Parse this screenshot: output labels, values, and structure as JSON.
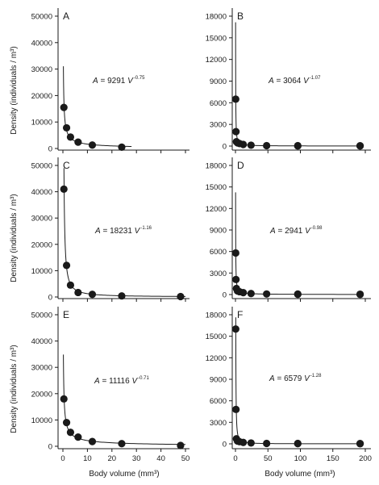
{
  "figure": {
    "ylabel": "Density (individuals / m³)",
    "xlabel": "Body volume (mm³)"
  },
  "chart_data": [
    {
      "type": "scatter",
      "panel": "A",
      "equation": {
        "lhs": "A",
        "coef": "9291",
        "var": "V",
        "exp": "-0.75",
        "a": 9291,
        "b": -0.75
      },
      "xlim": [
        0,
        50
      ],
      "ylim": [
        0,
        50000
      ],
      "xticks": [
        0,
        10,
        20,
        30,
        40,
        50
      ],
      "yticks": [
        "0",
        "10000",
        "20000",
        "30000",
        "40000",
        "50000"
      ],
      "points": [
        [
          0.4,
          15500
        ],
        [
          1.5,
          7800
        ],
        [
          3.1,
          4300
        ],
        [
          6.2,
          2400
        ],
        [
          12,
          1300
        ],
        [
          24,
          500
        ]
      ]
    },
    {
      "type": "scatter",
      "panel": "B",
      "equation": {
        "lhs": "A",
        "coef": "3064",
        "var": "V",
        "exp": "-1.07",
        "a": 3064,
        "b": -1.07
      },
      "xlim": [
        0,
        200
      ],
      "ylim": [
        0,
        18000
      ],
      "xticks": [
        0,
        50,
        100,
        150,
        200
      ],
      "yticks": [
        "0",
        "3000",
        "6000",
        "9000",
        "12000",
        "15000",
        "18000"
      ],
      "points": [
        [
          0.4,
          6500
        ],
        [
          0.8,
          2000
        ],
        [
          1.5,
          600
        ],
        [
          3.1,
          450
        ],
        [
          6.2,
          350
        ],
        [
          12,
          220
        ],
        [
          24,
          120
        ],
        [
          48,
          60
        ],
        [
          96,
          20
        ],
        [
          96,
          60
        ],
        [
          192,
          15
        ],
        [
          192,
          40
        ]
      ]
    },
    {
      "type": "scatter",
      "panel": "C",
      "equation": {
        "lhs": "A",
        "coef": "18231",
        "var": "V",
        "exp": "-1.16",
        "a": 18231,
        "b": -1.16
      },
      "xlim": [
        0,
        50
      ],
      "ylim": [
        0,
        50000
      ],
      "xticks": [
        0,
        10,
        20,
        30,
        40,
        50
      ],
      "yticks": [
        "0",
        "10000",
        "20000",
        "30000",
        "40000",
        "50000"
      ],
      "points": [
        [
          0.4,
          41000
        ],
        [
          1.5,
          12000
        ],
        [
          3.1,
          4500
        ],
        [
          6.2,
          1700
        ],
        [
          12,
          1000
        ],
        [
          24,
          400
        ],
        [
          48,
          150
        ]
      ]
    },
    {
      "type": "scatter",
      "panel": "D",
      "equation": {
        "lhs": "A",
        "coef": "2941",
        "var": "V",
        "exp": "-0.98",
        "a": 2941,
        "b": -0.98
      },
      "xlim": [
        0,
        200
      ],
      "ylim": [
        0,
        18000
      ],
      "xticks": [
        0,
        50,
        100,
        150,
        200
      ],
      "yticks": [
        "0",
        "3000",
        "6000",
        "9000",
        "12000",
        "15000",
        "18000"
      ],
      "points": [
        [
          0.4,
          5800
        ],
        [
          0.8,
          2100
        ],
        [
          1.5,
          850
        ],
        [
          3.1,
          500
        ],
        [
          6.2,
          400
        ],
        [
          12,
          270
        ],
        [
          24,
          140
        ],
        [
          48,
          80
        ],
        [
          96,
          30
        ],
        [
          96,
          70
        ],
        [
          192,
          20
        ],
        [
          192,
          50
        ]
      ]
    },
    {
      "type": "scatter",
      "panel": "E",
      "equation": {
        "lhs": "A",
        "coef": "11116",
        "var": "V",
        "exp": "-0.71",
        "a": 11116,
        "b": -0.71
      },
      "xlim": [
        0,
        50
      ],
      "ylim": [
        0,
        50000
      ],
      "xticks": [
        0,
        10,
        20,
        30,
        40,
        50
      ],
      "yticks": [
        "0",
        "10000",
        "20000",
        "30000",
        "40000",
        "50000"
      ],
      "points": [
        [
          0.4,
          18000
        ],
        [
          1.5,
          9000
        ],
        [
          3.1,
          5300
        ],
        [
          6.2,
          3500
        ],
        [
          12,
          1800
        ],
        [
          24,
          1000
        ],
        [
          48,
          300
        ]
      ]
    },
    {
      "type": "scatter",
      "panel": "F",
      "equation": {
        "lhs": "A",
        "coef": "6579",
        "var": "V",
        "exp": "-1.28",
        "a": 6579,
        "b": -1.28
      },
      "xlim": [
        0,
        200
      ],
      "ylim": [
        0,
        18000
      ],
      "xticks": [
        0,
        50,
        100,
        150,
        200
      ],
      "yticks": [
        "0",
        "3000",
        "6000",
        "9000",
        "12000",
        "15000",
        "18000"
      ],
      "points": [
        [
          0.4,
          16000
        ],
        [
          0.8,
          4800
        ],
        [
          1.5,
          700
        ],
        [
          3.1,
          400
        ],
        [
          6.2,
          300
        ],
        [
          12,
          200
        ],
        [
          24,
          120
        ],
        [
          48,
          60
        ],
        [
          96,
          30
        ],
        [
          96,
          60
        ],
        [
          192,
          20
        ],
        [
          192,
          40
        ]
      ]
    }
  ]
}
